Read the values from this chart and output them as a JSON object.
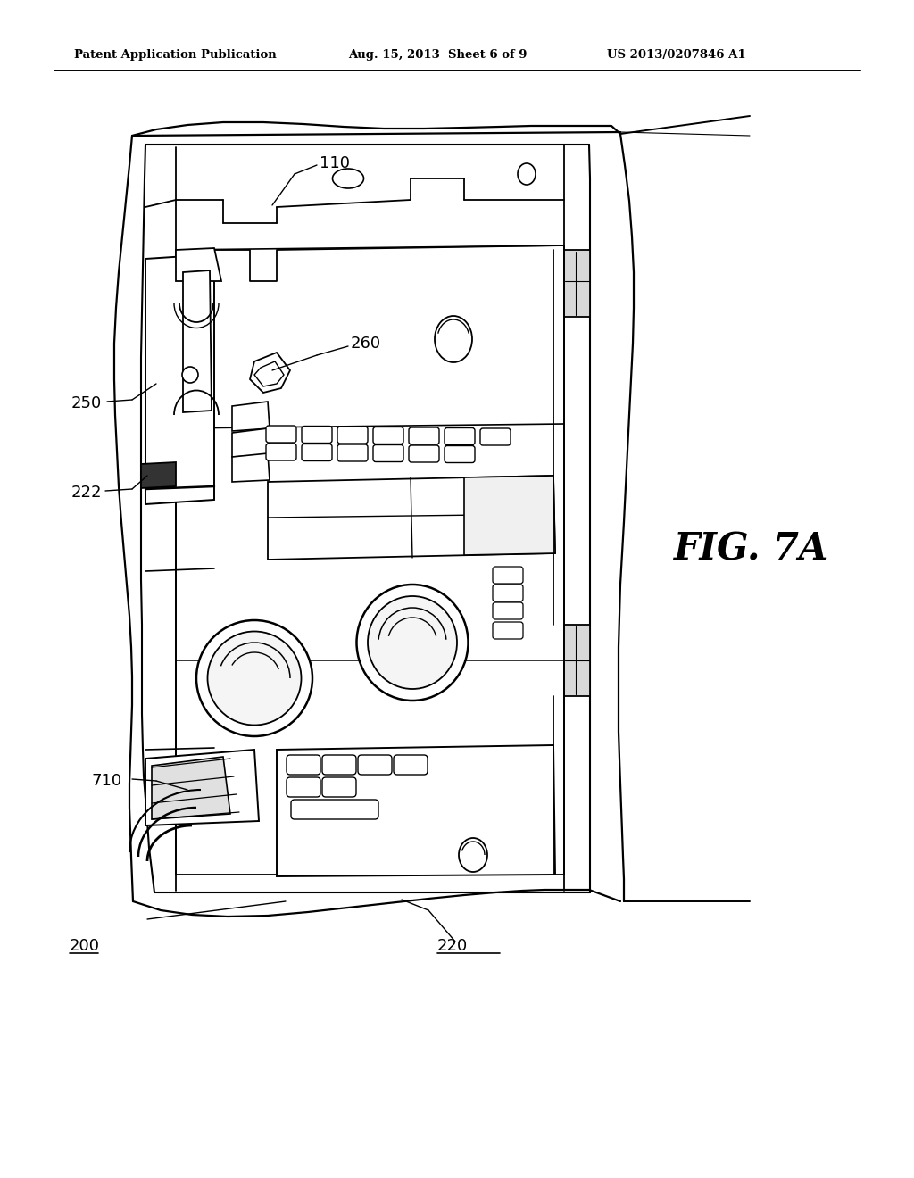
{
  "header_left": "Patent Application Publication",
  "header_mid": "Aug. 15, 2013  Sheet 6 of 9",
  "header_right": "US 2013/0207846 A1",
  "fig_label": "FIG. 7A",
  "bg_color": "#ffffff",
  "line_color": "#000000",
  "lw": 1.4
}
